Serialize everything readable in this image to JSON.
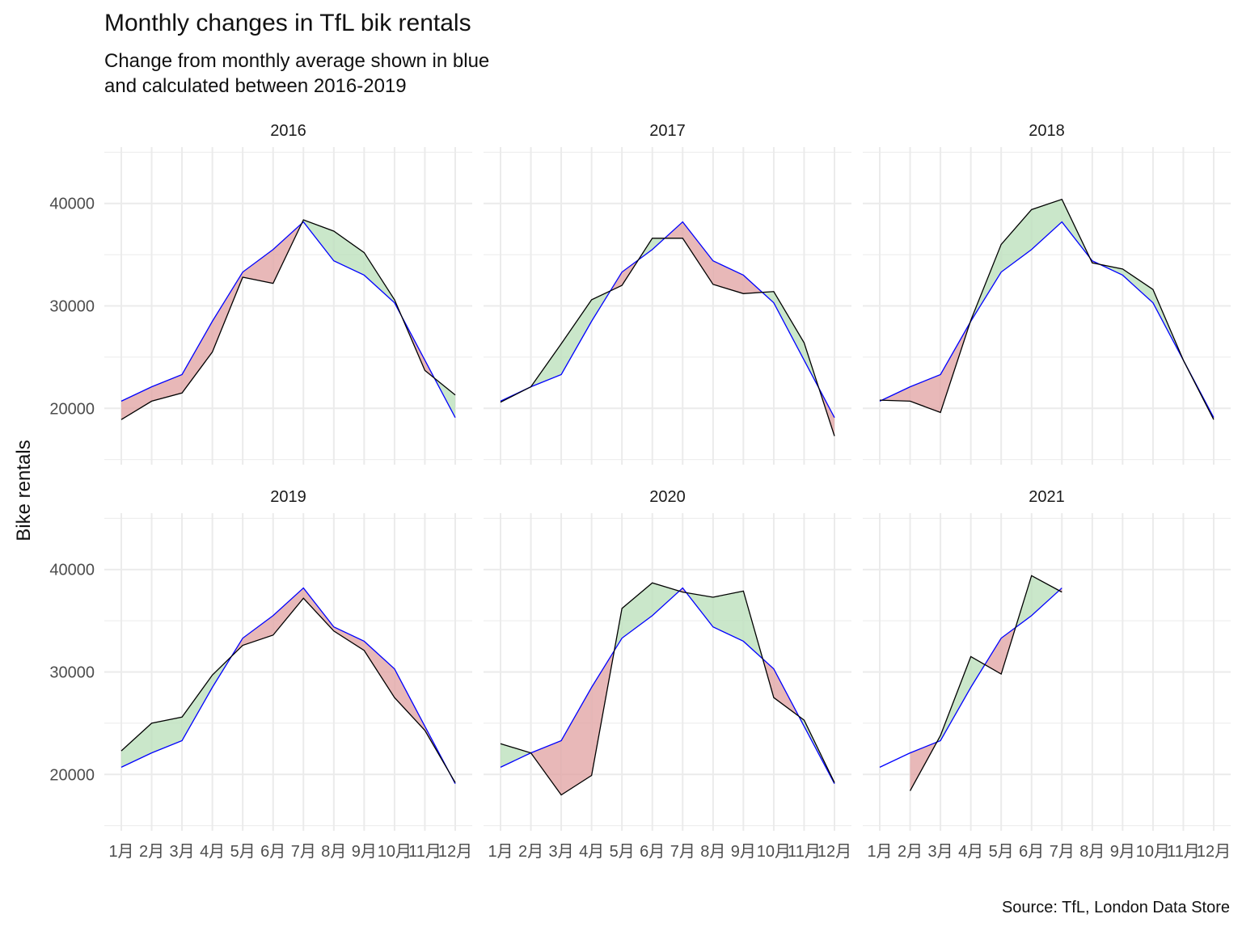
{
  "chart_data": {
    "type": "line",
    "title": "Monthly changes in TfL bik rentals",
    "subtitle_lines": [
      "Change from monthly average shown in blue",
      "and calculated between 2016-2019"
    ],
    "ylabel": "Bike rentals",
    "xlabel": "",
    "caption": "Source: TfL, London Data Store",
    "categories": [
      "1月",
      "2月",
      "3月",
      "4月",
      "5月",
      "6月",
      "7月",
      "8月",
      "9月",
      "10月",
      "11月",
      "12月"
    ],
    "yticks": [
      20000,
      30000,
      40000
    ],
    "ylim": [
      14500,
      45500
    ],
    "grid": true,
    "colors": {
      "average": "#0000ff",
      "actual": "#000000",
      "above_fill": "#b8dfb8",
      "below_fill": "#e0a0a0",
      "grid": "#ebebeb"
    },
    "average": [
      20700,
      22100,
      23300,
      28500,
      33300,
      35500,
      38200,
      34400,
      33000,
      30300,
      24700,
      19100
    ],
    "panels": [
      {
        "label": "2016",
        "values": [
          18900,
          20700,
          21500,
          25500,
          32800,
          32200,
          38400,
          37300,
          35200,
          30600,
          23700,
          21300
        ]
      },
      {
        "label": "2017",
        "values": [
          20600,
          22100,
          26300,
          30600,
          32000,
          36600,
          36600,
          32100,
          31200,
          31400,
          26400,
          17300
        ]
      },
      {
        "label": "2018",
        "values": [
          20800,
          20700,
          19600,
          28600,
          36000,
          39400,
          40400,
          34200,
          33600,
          31600,
          24700,
          18900
        ]
      },
      {
        "label": "2019",
        "values": [
          22300,
          25000,
          25600,
          29700,
          32600,
          33600,
          37200,
          34000,
          32100,
          27500,
          24300,
          19200
        ]
      },
      {
        "label": "2020",
        "values": [
          23000,
          22100,
          18000,
          19900,
          36200,
          38700,
          37800,
          37300,
          37900,
          27500,
          25300,
          19200
        ]
      },
      {
        "label": "2021",
        "values": [
          null,
          18400,
          23800,
          31500,
          29800,
          39400,
          37800,
          null,
          null,
          null,
          null,
          null
        ]
      }
    ]
  }
}
